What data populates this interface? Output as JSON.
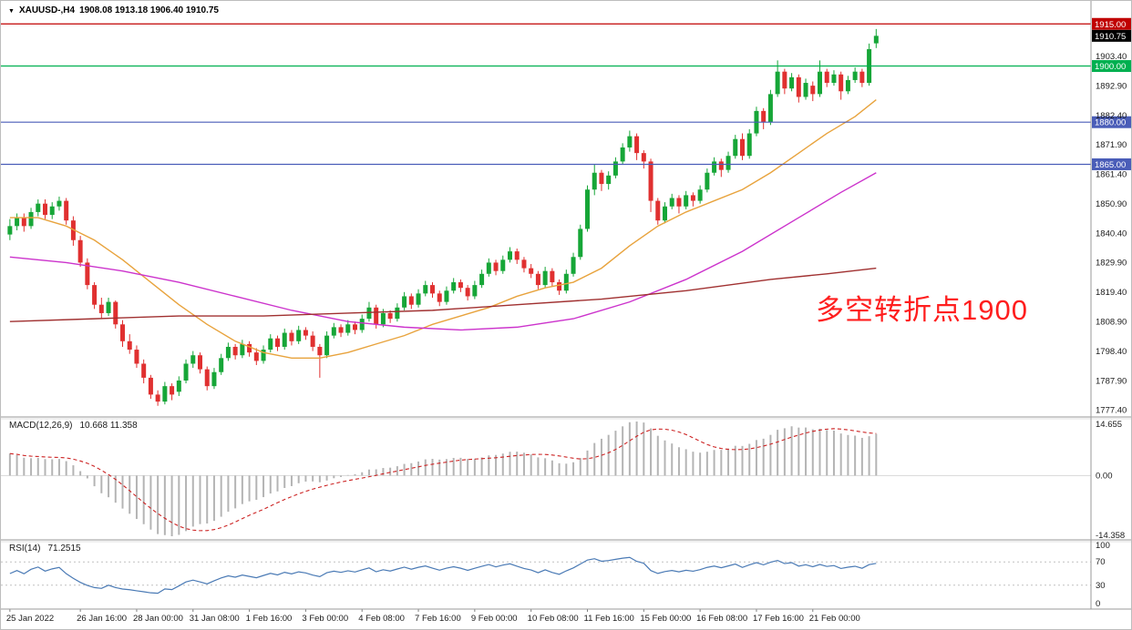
{
  "window": {
    "dropdown_icon": "▼",
    "symbol": "XAUUSD-,H4",
    "ohlc": "1908.08 1913.18 1906.40 1910.75"
  },
  "annotation": {
    "text": "多空转折点1900",
    "color": "#ff1e1e"
  },
  "indicators": {
    "macd": {
      "name": "MACD(12,26,9)",
      "values": "10.668 11.358",
      "scale": {
        "max": "14.655",
        "zero": "0.00",
        "min": "-14.358"
      }
    },
    "rsi": {
      "name": "RSI(14)",
      "value": "71.2515",
      "scale": [
        "100",
        "70",
        "30",
        "0"
      ],
      "levels": [
        70,
        30
      ]
    }
  },
  "chart_data": {
    "type": "candlestick",
    "title": "XAUUSD-,H4",
    "symbol": "XAUUSD",
    "timeframe": "H4",
    "total_slots": 154,
    "y_axis": {
      "price_max": 1918.0,
      "price_min": 1776.0,
      "ticks": [
        "1903.40",
        "1892.90",
        "1882.40",
        "1871.90",
        "1861.40",
        "1850.90",
        "1840.40",
        "1829.90",
        "1819.40",
        "1808.90",
        "1798.40",
        "1787.90",
        "1777.40"
      ]
    },
    "x_axis": {
      "labels": [
        {
          "slot": 0,
          "text": "25 Jan 2022"
        },
        {
          "slot": 10,
          "text": "26 Jan 16:00"
        },
        {
          "slot": 18,
          "text": "28 Jan 00:00"
        },
        {
          "slot": 26,
          "text": "31 Jan 08:00"
        },
        {
          "slot": 34,
          "text": "1 Feb 16:00"
        },
        {
          "slot": 42,
          "text": "3 Feb 00:00"
        },
        {
          "slot": 50,
          "text": "4 Feb 08:00"
        },
        {
          "slot": 58,
          "text": "7 Feb 16:00"
        },
        {
          "slot": 66,
          "text": "9 Feb 00:00"
        },
        {
          "slot": 74,
          "text": "10 Feb 08:00"
        },
        {
          "slot": 82,
          "text": "11 Feb 16:00"
        },
        {
          "slot": 90,
          "text": "15 Feb 00:00"
        },
        {
          "slot": 98,
          "text": "16 Feb 08:00"
        },
        {
          "slot": 106,
          "text": "17 Feb 16:00"
        },
        {
          "slot": 114,
          "text": "21 Feb 00:00"
        }
      ]
    },
    "h_lines": [
      {
        "price": 1915.0,
        "label": "1915.00",
        "color": "#c00000"
      },
      {
        "price": 1900.0,
        "label": "1900.00",
        "color": "#00b050"
      },
      {
        "price": 1880.0,
        "label": "1880.00",
        "color": "#4a5db8"
      },
      {
        "price": 1865.0,
        "label": "1865.00",
        "color": "#4a5db8"
      }
    ],
    "current_price": {
      "price": 1910.75,
      "label": "1910.75",
      "bg": "#000000"
    },
    "colors": {
      "up": "#16a637",
      "down": "#e03030",
      "macd_hist": "#b4b4b4",
      "macd_signal": "#cc2222",
      "rsi": "#4a7ab5",
      "grid": "#9a9a9a"
    },
    "ma_lines": [
      {
        "name": "ma-fast-orange",
        "color": "#e8a33d",
        "points": [
          [
            0,
            1846
          ],
          [
            4,
            1846
          ],
          [
            8,
            1843
          ],
          [
            12,
            1838
          ],
          [
            16,
            1831
          ],
          [
            20,
            1823
          ],
          [
            24,
            1815
          ],
          [
            28,
            1808
          ],
          [
            32,
            1802
          ],
          [
            36,
            1798
          ],
          [
            40,
            1796
          ],
          [
            44,
            1796
          ],
          [
            48,
            1798
          ],
          [
            52,
            1801
          ],
          [
            56,
            1804
          ],
          [
            60,
            1808
          ],
          [
            64,
            1811
          ],
          [
            68,
            1814
          ],
          [
            72,
            1818
          ],
          [
            76,
            1821
          ],
          [
            80,
            1823
          ],
          [
            84,
            1828
          ],
          [
            88,
            1836
          ],
          [
            92,
            1843
          ],
          [
            96,
            1848
          ],
          [
            100,
            1852
          ],
          [
            104,
            1856
          ],
          [
            108,
            1862
          ],
          [
            112,
            1869
          ],
          [
            116,
            1876
          ],
          [
            120,
            1882
          ],
          [
            123,
            1888
          ]
        ]
      },
      {
        "name": "ma-mid-magenta",
        "color": "#cc33cc",
        "points": [
          [
            0,
            1832
          ],
          [
            8,
            1830
          ],
          [
            16,
            1827
          ],
          [
            24,
            1823
          ],
          [
            32,
            1818
          ],
          [
            40,
            1813
          ],
          [
            48,
            1809
          ],
          [
            56,
            1807
          ],
          [
            64,
            1806
          ],
          [
            72,
            1807
          ],
          [
            80,
            1810
          ],
          [
            88,
            1816
          ],
          [
            96,
            1824
          ],
          [
            104,
            1834
          ],
          [
            112,
            1846
          ],
          [
            118,
            1855
          ],
          [
            123,
            1862
          ]
        ]
      },
      {
        "name": "ma-slow-darkred",
        "color": "#a03030",
        "points": [
          [
            0,
            1809
          ],
          [
            12,
            1810
          ],
          [
            24,
            1811
          ],
          [
            36,
            1811
          ],
          [
            48,
            1812
          ],
          [
            60,
            1813
          ],
          [
            72,
            1815
          ],
          [
            84,
            1817
          ],
          [
            96,
            1820
          ],
          [
            108,
            1824
          ],
          [
            116,
            1826
          ],
          [
            123,
            1828
          ]
        ]
      }
    ],
    "candles": [
      [
        1840.0,
        1845.5,
        1838.0,
        1843.0
      ],
      [
        1843.0,
        1847.5,
        1841.5,
        1846.0
      ],
      [
        1846.0,
        1847.5,
        1841.0,
        1843.0
      ],
      [
        1843.0,
        1849.5,
        1842.0,
        1848.0
      ],
      [
        1848.0,
        1852.5,
        1846.5,
        1851.0
      ],
      [
        1851.0,
        1852.5,
        1845.5,
        1847.0
      ],
      [
        1847.0,
        1851.5,
        1845.5,
        1850.0
      ],
      [
        1850.0,
        1853.5,
        1848.5,
        1852.0
      ],
      [
        1852.0,
        1853.0,
        1843.5,
        1845.0
      ],
      [
        1845.0,
        1846.5,
        1836.0,
        1838.0
      ],
      [
        1838.0,
        1839.5,
        1828.5,
        1830.0
      ],
      [
        1830.0,
        1831.5,
        1820.5,
        1822.0
      ],
      [
        1822.0,
        1823.0,
        1813.5,
        1815.0
      ],
      [
        1815.0,
        1817.5,
        1810.0,
        1812.0
      ],
      [
        1812.0,
        1817.5,
        1811.0,
        1816.0
      ],
      [
        1816.0,
        1816.5,
        1806.5,
        1808.0
      ],
      [
        1808.0,
        1809.5,
        1800.0,
        1802.0
      ],
      [
        1802.0,
        1804.5,
        1797.5,
        1799.0
      ],
      [
        1799.0,
        1800.5,
        1792.5,
        1794.0
      ],
      [
        1794.0,
        1795.5,
        1787.0,
        1789.0
      ],
      [
        1789.0,
        1790.0,
        1781.5,
        1783.0
      ],
      [
        1783.0,
        1784.5,
        1779.0,
        1780.5
      ],
      [
        1780.5,
        1787.5,
        1779.5,
        1786.0
      ],
      [
        1786.0,
        1787.0,
        1781.0,
        1783.0
      ],
      [
        1784.0,
        1789.5,
        1782.5,
        1788.0
      ],
      [
        1788.0,
        1795.5,
        1787.0,
        1794.0
      ],
      [
        1794.0,
        1798.5,
        1792.5,
        1797.0
      ],
      [
        1797.0,
        1798.0,
        1790.5,
        1792.0
      ],
      [
        1792.0,
        1793.0,
        1784.5,
        1786.0
      ],
      [
        1786.0,
        1792.5,
        1785.0,
        1791.0
      ],
      [
        1791.0,
        1797.5,
        1790.0,
        1796.0
      ],
      [
        1796.0,
        1801.5,
        1795.0,
        1800.0
      ],
      [
        1800.0,
        1801.0,
        1795.5,
        1797.0
      ],
      [
        1797.0,
        1802.5,
        1796.0,
        1801.0
      ],
      [
        1801.0,
        1802.0,
        1796.5,
        1798.0
      ],
      [
        1798.0,
        1799.5,
        1793.5,
        1795.0
      ],
      [
        1795.0,
        1800.5,
        1794.0,
        1799.0
      ],
      [
        1799.0,
        1804.5,
        1798.0,
        1803.0
      ],
      [
        1803.0,
        1804.0,
        1798.5,
        1800.0
      ],
      [
        1800.0,
        1806.5,
        1799.0,
        1805.0
      ],
      [
        1805.0,
        1806.0,
        1800.5,
        1802.0
      ],
      [
        1802.0,
        1807.5,
        1801.0,
        1806.0
      ],
      [
        1806.0,
        1807.0,
        1802.5,
        1804.0
      ],
      [
        1804.0,
        1805.5,
        1798.5,
        1800.0
      ],
      [
        1800.0,
        1801.0,
        1789.0,
        1797.0
      ],
      [
        1797.0,
        1805.5,
        1796.0,
        1804.0
      ],
      [
        1804.0,
        1808.5,
        1803.0,
        1807.0
      ],
      [
        1807.0,
        1808.0,
        1803.5,
        1805.0
      ],
      [
        1805.0,
        1809.5,
        1804.0,
        1808.0
      ],
      [
        1808.0,
        1809.0,
        1804.5,
        1806.0
      ],
      [
        1806.0,
        1811.5,
        1805.0,
        1810.0
      ],
      [
        1810.0,
        1816.0,
        1809.0,
        1814.0
      ],
      [
        1814.0,
        1815.0,
        1806.5,
        1808.0
      ],
      [
        1808.0,
        1813.5,
        1807.0,
        1812.0
      ],
      [
        1812.0,
        1813.0,
        1808.5,
        1810.0
      ],
      [
        1810.0,
        1815.5,
        1809.0,
        1814.0
      ],
      [
        1814.0,
        1819.5,
        1813.0,
        1818.0
      ],
      [
        1818.0,
        1819.0,
        1813.5,
        1815.0
      ],
      [
        1815.0,
        1820.5,
        1814.0,
        1819.0
      ],
      [
        1819.0,
        1823.5,
        1818.0,
        1822.0
      ],
      [
        1822.0,
        1823.0,
        1817.5,
        1819.0
      ],
      [
        1819.0,
        1820.0,
        1814.5,
        1816.0
      ],
      [
        1816.0,
        1821.5,
        1815.0,
        1820.0
      ],
      [
        1820.0,
        1824.5,
        1819.0,
        1823.0
      ],
      [
        1823.0,
        1824.0,
        1819.5,
        1821.0
      ],
      [
        1821.0,
        1822.0,
        1816.5,
        1818.0
      ],
      [
        1818.0,
        1823.5,
        1817.0,
        1822.0
      ],
      [
        1822.0,
        1827.5,
        1821.0,
        1826.0
      ],
      [
        1826.0,
        1831.5,
        1825.0,
        1830.0
      ],
      [
        1830.0,
        1831.0,
        1825.5,
        1827.0
      ],
      [
        1827.0,
        1832.5,
        1826.0,
        1831.0
      ],
      [
        1831.0,
        1835.5,
        1830.0,
        1834.0
      ],
      [
        1834.0,
        1835.0,
        1829.5,
        1831.0
      ],
      [
        1831.0,
        1832.0,
        1826.5,
        1828.0
      ],
      [
        1828.0,
        1829.5,
        1824.5,
        1826.0
      ],
      [
        1826.0,
        1827.0,
        1820.5,
        1822.0
      ],
      [
        1822.0,
        1828.5,
        1821.0,
        1827.0
      ],
      [
        1827.0,
        1828.0,
        1821.5,
        1823.0
      ],
      [
        1823.0,
        1824.0,
        1818.5,
        1820.0
      ],
      [
        1820.0,
        1827.5,
        1819.0,
        1826.0
      ],
      [
        1826.0,
        1833.5,
        1825.0,
        1832.0
      ],
      [
        1832.0,
        1843.5,
        1831.0,
        1842.0
      ],
      [
        1842.0,
        1857.5,
        1841.0,
        1856.0
      ],
      [
        1856.0,
        1865.0,
        1854.0,
        1862.0
      ],
      [
        1862.0,
        1863.0,
        1855.5,
        1858.0
      ],
      [
        1858.0,
        1862.5,
        1856.0,
        1861.0
      ],
      [
        1861.0,
        1867.5,
        1860.0,
        1866.0
      ],
      [
        1866.0,
        1872.5,
        1865.0,
        1871.0
      ],
      [
        1871.0,
        1877.0,
        1869.5,
        1875.0
      ],
      [
        1875.0,
        1876.0,
        1866.5,
        1869.0
      ],
      [
        1869.0,
        1870.0,
        1863.5,
        1866.0
      ],
      [
        1866.0,
        1867.0,
        1848.0,
        1852.0
      ],
      [
        1852.0,
        1853.0,
        1843.5,
        1845.0
      ],
      [
        1845.0,
        1851.5,
        1844.0,
        1850.0
      ],
      [
        1850.0,
        1854.5,
        1849.0,
        1853.0
      ],
      [
        1853.0,
        1854.0,
        1847.5,
        1850.0
      ],
      [
        1850.0,
        1855.5,
        1849.0,
        1854.0
      ],
      [
        1854.0,
        1855.0,
        1850.0,
        1852.0
      ],
      [
        1852.0,
        1857.5,
        1851.0,
        1856.0
      ],
      [
        1856.0,
        1863.5,
        1855.0,
        1862.0
      ],
      [
        1862.0,
        1867.5,
        1861.0,
        1866.0
      ],
      [
        1866.0,
        1867.0,
        1860.5,
        1863.0
      ],
      [
        1863.0,
        1869.5,
        1862.0,
        1868.0
      ],
      [
        1868.0,
        1875.5,
        1867.0,
        1874.0
      ],
      [
        1874.0,
        1876.0,
        1866.5,
        1868.0
      ],
      [
        1868.0,
        1877.5,
        1867.0,
        1876.0
      ],
      [
        1876.0,
        1885.5,
        1875.0,
        1884.0
      ],
      [
        1884.0,
        1885.0,
        1877.5,
        1880.0
      ],
      [
        1880.0,
        1891.5,
        1879.0,
        1890.0
      ],
      [
        1890.0,
        1902.0,
        1889.0,
        1898.0
      ],
      [
        1898.0,
        1899.0,
        1890.0,
        1892.0
      ],
      [
        1892.0,
        1897.5,
        1891.0,
        1896.0
      ],
      [
        1896.0,
        1897.0,
        1887.0,
        1889.0
      ],
      [
        1889.0,
        1895.5,
        1888.0,
        1894.0
      ],
      [
        1893.0,
        1894.5,
        1887.5,
        1890.0
      ],
      [
        1890.0,
        1902.0,
        1889.0,
        1898.0
      ],
      [
        1898.0,
        1899.0,
        1892.5,
        1894.0
      ],
      [
        1894.0,
        1898.5,
        1893.0,
        1897.0
      ],
      [
        1897.0,
        1898.0,
        1888.0,
        1891.0
      ],
      [
        1891.0,
        1896.5,
        1890.0,
        1895.0
      ],
      [
        1895.0,
        1899.5,
        1894.0,
        1898.0
      ],
      [
        1898.0,
        1899.0,
        1892.5,
        1894.0
      ],
      [
        1894.0,
        1908.0,
        1893.0,
        1906.0
      ],
      [
        1908.08,
        1913.18,
        1906.4,
        1910.75
      ]
    ]
  }
}
